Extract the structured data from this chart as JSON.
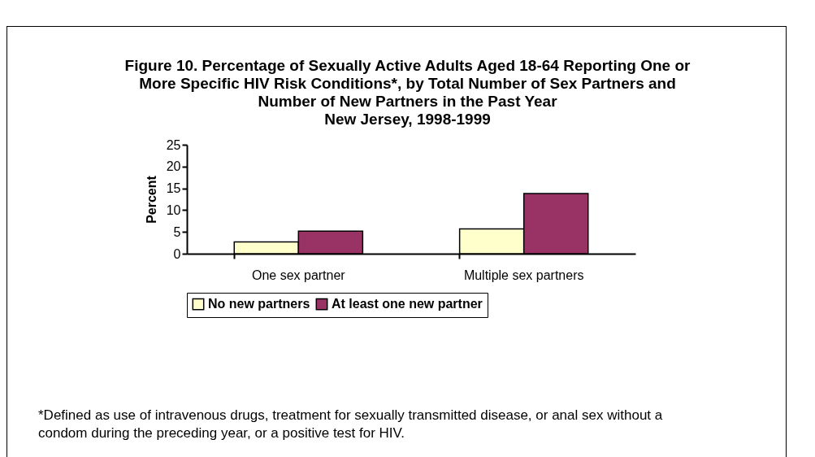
{
  "chart_data": {
    "type": "bar",
    "title": "Figure 10.  Percentage of Sexually Active Adults Aged 18-64 Reporting One or More Specific HIV Risk Conditions*, by Total Number of Sex Partners and Number of New Partners in the Past Year",
    "subtitle": "New Jersey, 1998-1999",
    "ylabel": "Percent",
    "categories": [
      "One sex partner",
      "Multiple sex partners"
    ],
    "series": [
      {
        "name": "No new partners",
        "color": "#ffffcc",
        "values": [
          2.7,
          5.7
        ]
      },
      {
        "name": "At least one new partner",
        "color": "#993366",
        "values": [
          5.2,
          13.8
        ]
      }
    ],
    "ylim": [
      0,
      25
    ],
    "yticks": [
      0,
      5,
      10,
      15,
      20,
      25
    ],
    "grid": false,
    "legend": "bottom",
    "annotations": [
      "*Defined as use of intravenous drugs, treatment for sexually transmitted disease, or anal sex without a condom during the preceding year, or a positive test for HIV."
    ]
  }
}
